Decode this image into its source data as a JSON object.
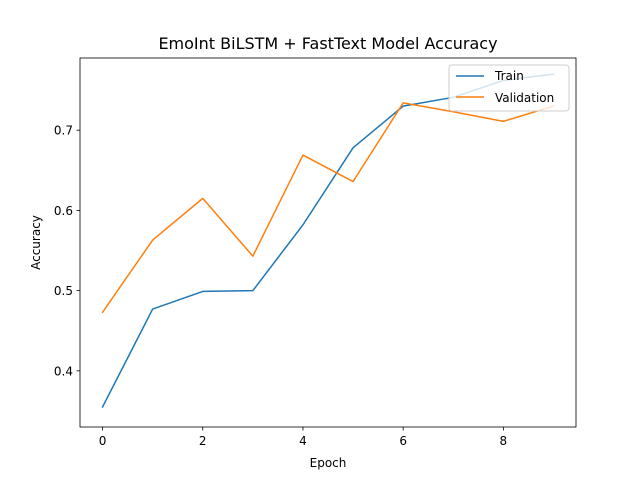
{
  "chart_data": {
    "type": "line",
    "title": "EmoInt BiLSTM + FastText Model Accuracy",
    "xlabel": "Epoch",
    "ylabel": "Accuracy",
    "xlim": [
      -0.45,
      9.45
    ],
    "ylim": [
      0.33,
      0.79
    ],
    "xticks": [
      "0",
      "2",
      "4",
      "6",
      "8"
    ],
    "yticks": [
      "0.4",
      "0.5",
      "0.6",
      "0.7"
    ],
    "legend_position": "top-right",
    "x": [
      0,
      1,
      2,
      3,
      4,
      5,
      6,
      7,
      8,
      9
    ],
    "series": [
      {
        "name": "Train",
        "color": "#1f77b4",
        "values": [
          0.355,
          0.477,
          0.499,
          0.5,
          0.582,
          0.678,
          0.73,
          0.741,
          0.762,
          0.77
        ]
      },
      {
        "name": "Validation",
        "color": "#ff7f0e",
        "values": [
          0.473,
          0.563,
          0.615,
          0.543,
          0.669,
          0.636,
          0.734,
          0.723,
          0.711,
          0.73
        ]
      }
    ]
  }
}
